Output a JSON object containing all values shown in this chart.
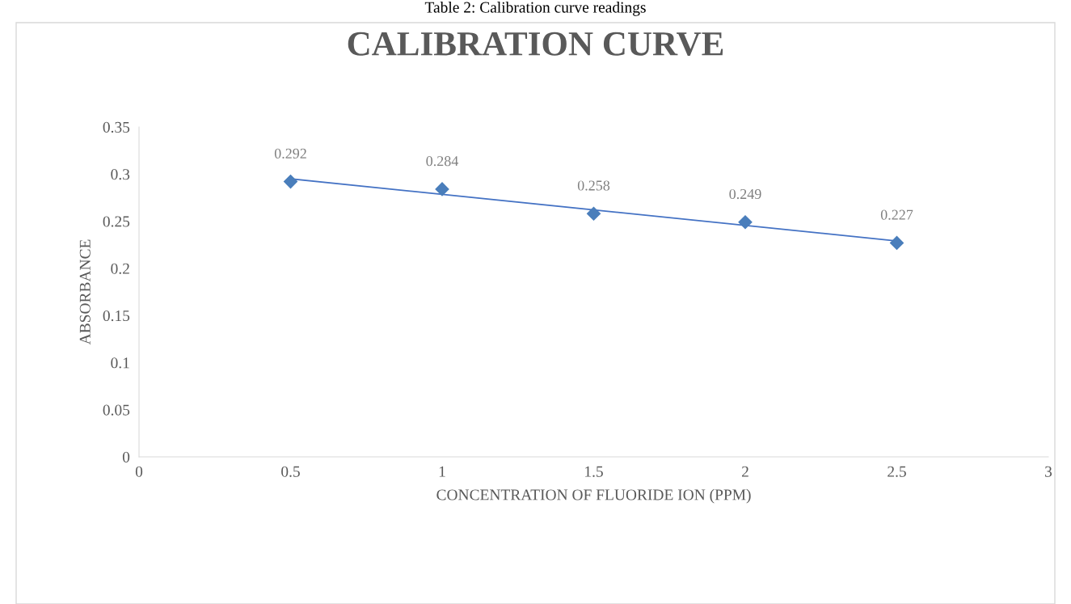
{
  "chart_data": {
    "type": "scatter",
    "title": "CALIBRATION CURVE",
    "xlabel": "CONCENTRATION OF FLUORIDE ION (PPM)",
    "ylabel": "ABSORBANCE",
    "annotations": [
      "Table 2: Calibration curve readings"
    ],
    "series": [
      {
        "color": "#4a7ebb",
        "marker": "diamond",
        "x": [
          0.5,
          1,
          1.5,
          2,
          2.5
        ],
        "values": [
          0.292,
          0.284,
          0.258,
          0.249,
          0.227
        ],
        "value_labels": [
          "0.292",
          "0.284",
          "0.258",
          "0.249",
          "0.227"
        ]
      },
      {
        "type": "line",
        "color": "#4472c4",
        "marker": "none",
        "x": [
          0.5,
          2.5
        ],
        "values": [
          0.295,
          0.229
        ]
      }
    ],
    "xlim": [
      0,
      3
    ],
    "xticks": [
      0,
      0.5,
      1,
      1.5,
      2,
      2.5,
      3
    ],
    "ylim": [
      0,
      0.35
    ],
    "yticks": [
      0,
      0.05,
      0.1,
      0.15,
      0.2,
      0.25,
      0.3,
      0.35
    ],
    "grid": false,
    "legend": false
  }
}
